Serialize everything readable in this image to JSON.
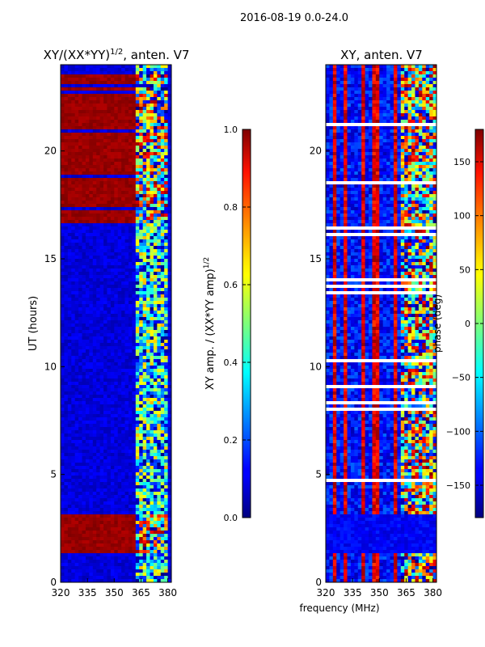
{
  "suptitle": "2016-08-19 0.0-24.0",
  "shared": {
    "xlabel": "frequency (MHz)",
    "ylabel": "UT (hours)"
  },
  "chart_data": [
    {
      "id": "left",
      "type": "heatmap",
      "title": "XY/(XX*YY)",
      "title_sup": "1/2",
      "title_tail": ", anten. V7",
      "x_label": "frequency (MHz)",
      "y_label": "UT (hours)",
      "xlim": [
        320,
        382
      ],
      "ylim": [
        0,
        24
      ],
      "xticks": [
        320,
        335,
        350,
        365,
        380
      ],
      "yticks": [
        0,
        5,
        10,
        15,
        20
      ],
      "colorbar": {
        "label": "XY amp. / (XX*YY amp)",
        "label_sup": "1/2",
        "range": [
          0.0,
          1.0
        ],
        "ticks": [
          0.0,
          0.2,
          0.4,
          0.6,
          0.8,
          1.0
        ],
        "tick_labels": [
          "0.0",
          "0.2",
          "0.4",
          "0.6",
          "0.8",
          "1.0"
        ]
      },
      "features": {
        "saturated_bands_hours": [
          [
            1.4,
            3.1
          ],
          [
            16.7,
            23.6
          ]
        ],
        "active_band_mhz": [
          362,
          380
        ],
        "background_value": 0.05,
        "saturated_value": 1.0
      }
    },
    {
      "id": "right",
      "type": "heatmap",
      "title": "XY, anten. V7",
      "x_label": "frequency (MHz)",
      "xlim": [
        320,
        382
      ],
      "ylim": [
        0,
        24
      ],
      "xticks": [
        320,
        335,
        350,
        365,
        380
      ],
      "yticks": [
        0,
        5,
        10,
        15,
        20
      ],
      "colorbar": {
        "label": "phase (deg)",
        "range": [
          -180,
          180
        ],
        "ticks": [
          -150,
          -100,
          -50,
          0,
          50,
          100,
          150
        ],
        "tick_labels": [
          "−150",
          "−100",
          "−50",
          "0",
          "50",
          "100",
          "150"
        ]
      },
      "features": {
        "red_column_centers_mhz": [
          325,
          331,
          341,
          348,
          359
        ],
        "dark_band_hours": [
          1.4,
          3.2
        ]
      }
    }
  ]
}
